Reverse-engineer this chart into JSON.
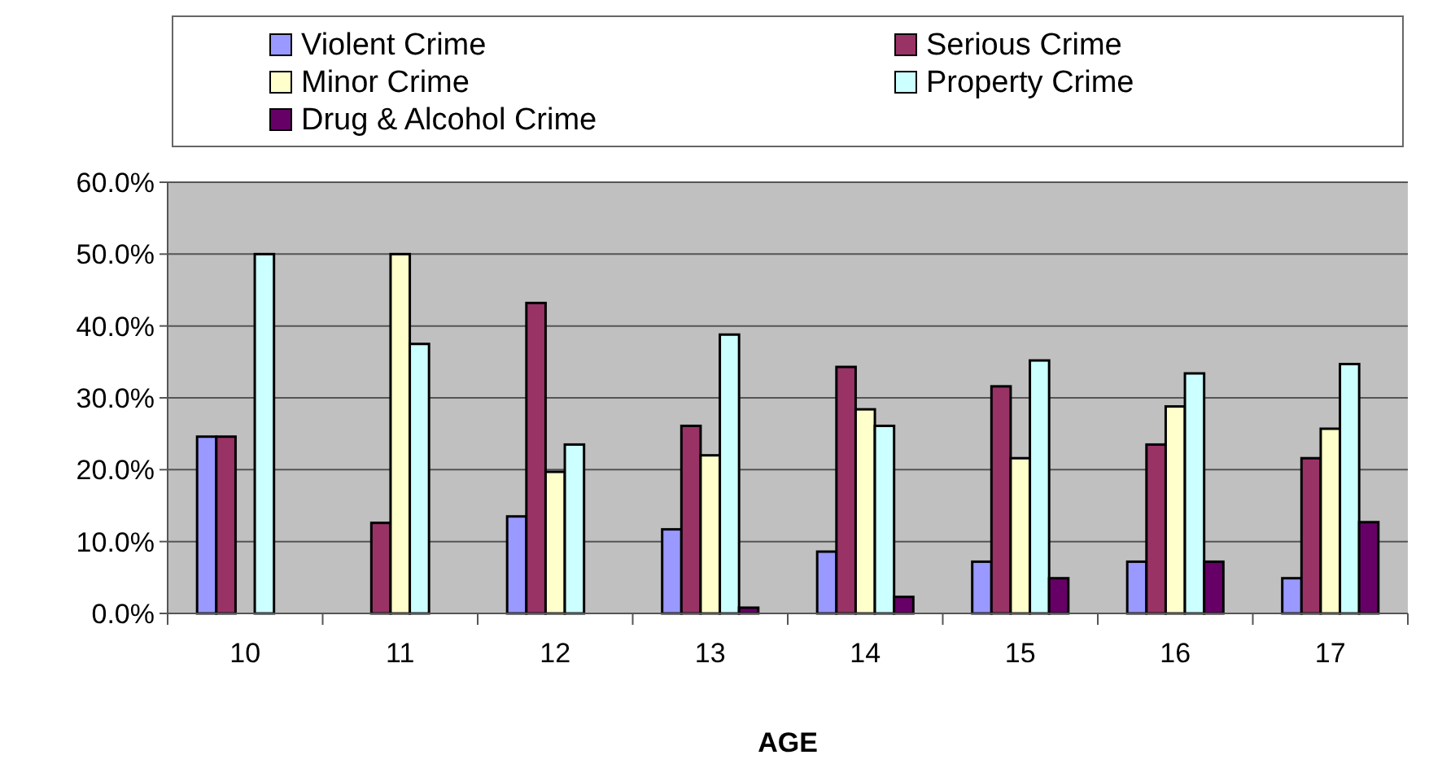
{
  "chart_data": {
    "type": "bar",
    "xlabel": "AGE",
    "categories": [
      "10",
      "11",
      "12",
      "13",
      "14",
      "15",
      "16",
      "17"
    ],
    "series": [
      {
        "name": "Violent Crime",
        "color": "#9999ff",
        "values": [
          24.6,
          0,
          13.5,
          11.7,
          8.6,
          7.2,
          7.2,
          4.9
        ]
      },
      {
        "name": "Serious Crime",
        "color": "#993366",
        "values": [
          24.6,
          12.6,
          43.2,
          26.1,
          34.3,
          31.6,
          23.5,
          21.6
        ]
      },
      {
        "name": "Minor Crime",
        "color": "#ffffcc",
        "values": [
          0,
          50,
          19.7,
          22,
          28.4,
          21.6,
          28.8,
          25.7
        ]
      },
      {
        "name": "Property Crime",
        "color": "#ccffff",
        "values": [
          50,
          37.5,
          23.5,
          38.8,
          26.1,
          35.2,
          33.4,
          34.7
        ]
      },
      {
        "name": "Drug & Alcohol Crime",
        "color": "#660066",
        "values": [
          0,
          0,
          0,
          0.8,
          2.3,
          4.9,
          7.2,
          12.7
        ]
      }
    ],
    "ylim": [
      0,
      60
    ],
    "yticks": [
      {
        "value": 0,
        "label": "0.0%"
      },
      {
        "value": 10,
        "label": "10.0%"
      },
      {
        "value": 20,
        "label": "20.0%"
      },
      {
        "value": 30,
        "label": "30.0%"
      },
      {
        "value": 40,
        "label": "40.0%"
      },
      {
        "value": 50,
        "label": "50.0%"
      },
      {
        "value": 60,
        "label": "60.0%"
      }
    ],
    "grid": "y",
    "legend": "top"
  }
}
